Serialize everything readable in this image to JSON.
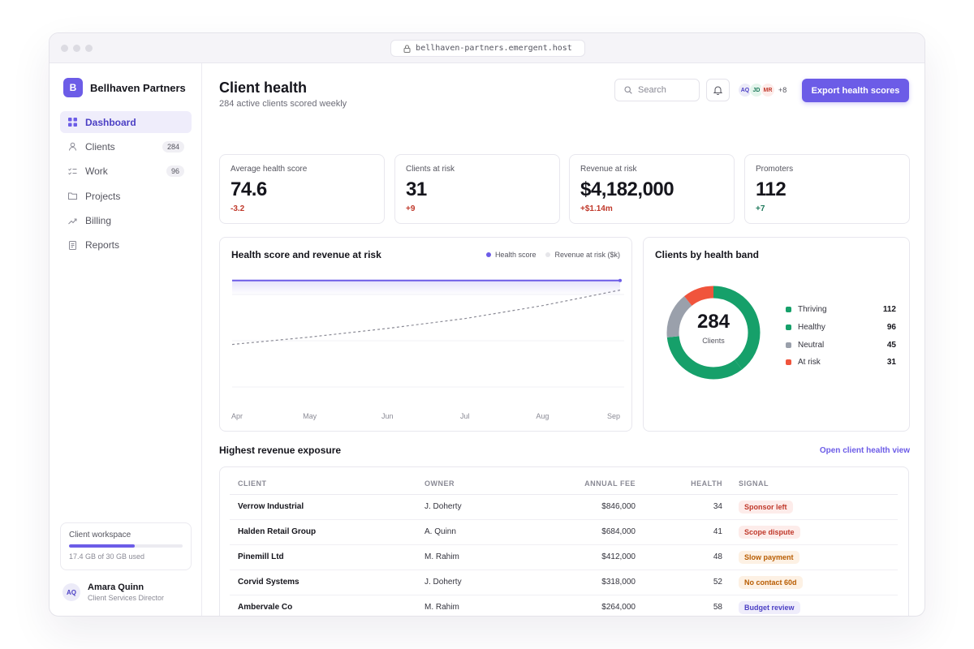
{
  "browser": {
    "url": "bellhaven-partners.emergent.host"
  },
  "sidebar": {
    "brand": {
      "initial": "B",
      "name": "Bellhaven Partners"
    },
    "items": [
      {
        "label": "Dashboard",
        "icon": "grid-icon",
        "badge": "",
        "active": true
      },
      {
        "label": "Clients",
        "icon": "user-icon",
        "badge": "284"
      },
      {
        "label": "Work",
        "icon": "checklist-icon",
        "badge": "96"
      },
      {
        "label": "Projects",
        "icon": "folder-icon",
        "badge": ""
      },
      {
        "label": "Billing",
        "icon": "trend-icon",
        "badge": ""
      },
      {
        "label": "Reports",
        "icon": "document-icon",
        "badge": ""
      }
    ],
    "workspace": {
      "title": "Client workspace",
      "usage_text": "17.4 GB of 30 GB used",
      "used_fraction": 0.58
    },
    "user": {
      "initials": "AQ",
      "name": "Amara Quinn",
      "role": "Client Services Director"
    }
  },
  "header": {
    "title": "Client health",
    "subtitle": "284 active clients scored weekly",
    "search_placeholder": "Search",
    "avatars": [
      "AQ",
      "JD",
      "MR"
    ],
    "avatars_more": "+8",
    "export_label": "Export health scores"
  },
  "kpis": [
    {
      "label": "Average health score",
      "value": "74.6",
      "delta": "-3.2",
      "trend": "neg"
    },
    {
      "label": "Clients at risk",
      "value": "31",
      "delta": "+9",
      "trend": "neg"
    },
    {
      "label": "Revenue at risk",
      "value": "$4,182,000",
      "delta": "+$1.14m",
      "trend": "neg"
    },
    {
      "label": "Promoters",
      "value": "112",
      "delta": "+7",
      "trend": "pos"
    }
  ],
  "line_chart": {
    "title": "Health score and revenue at risk",
    "legend": [
      {
        "name": "Health score",
        "color": "#6c5ce7"
      },
      {
        "name": "Revenue at risk ($k)",
        "color": "#e6e6ea"
      }
    ]
  },
  "donut": {
    "title": "Clients by health band",
    "center_value": "284",
    "center_label": "Clients"
  },
  "colors": {
    "accent": "#6c5ce7",
    "thriving": "#16a06a",
    "healthy": "#16a06a",
    "neutral": "#9aa0ab",
    "at_risk": "#f0543c"
  },
  "chart_data": [
    {
      "type": "line",
      "title": "Health score and revenue at risk",
      "categories": [
        "Apr",
        "May",
        "Jun",
        "Jul",
        "Aug",
        "Sep"
      ],
      "series": [
        {
          "name": "Health score",
          "values": [
            74.6,
            74.6,
            74.6,
            74.6,
            74.6,
            74.6
          ]
        },
        {
          "name": "Revenue at risk ($k)",
          "values": [
            3300,
            3420,
            3560,
            3720,
            3930,
            4182
          ]
        }
      ]
    },
    {
      "type": "pie",
      "title": "Clients by health band",
      "categories": [
        "Thriving",
        "Healthy",
        "Neutral",
        "At risk"
      ],
      "values": [
        112,
        96,
        45,
        31
      ]
    }
  ],
  "exposure": {
    "title": "Highest revenue exposure",
    "link": "Open client health view",
    "columns": [
      "CLIENT",
      "OWNER",
      "ANNUAL FEE",
      "HEALTH",
      "SIGNAL"
    ],
    "rows": [
      {
        "client": "Verrow Industrial",
        "owner": "J. Doherty",
        "fee": "$846,000",
        "health": "34",
        "signal": "Sponsor left",
        "signal_color": "#c0392b",
        "signal_bg": "#fdecea"
      },
      {
        "client": "Halden Retail Group",
        "owner": "A. Quinn",
        "fee": "$684,000",
        "health": "41",
        "signal": "Scope dispute",
        "signal_color": "#c0392b",
        "signal_bg": "#fdecea"
      },
      {
        "client": "Pinemill Ltd",
        "owner": "M. Rahim",
        "fee": "$412,000",
        "health": "48",
        "signal": "Slow payment",
        "signal_color": "#b85c00",
        "signal_bg": "#fdf1e4"
      },
      {
        "client": "Corvid Systems",
        "owner": "J. Doherty",
        "fee": "$318,000",
        "health": "52",
        "signal": "No contact 60d",
        "signal_color": "#b85c00",
        "signal_bg": "#fdf1e4"
      },
      {
        "client": "Ambervale Co",
        "owner": "M. Rahim",
        "fee": "$264,000",
        "health": "58",
        "signal": "Budget review",
        "signal_color": "#4b3fc4",
        "signal_bg": "#efedfb"
      }
    ]
  }
}
